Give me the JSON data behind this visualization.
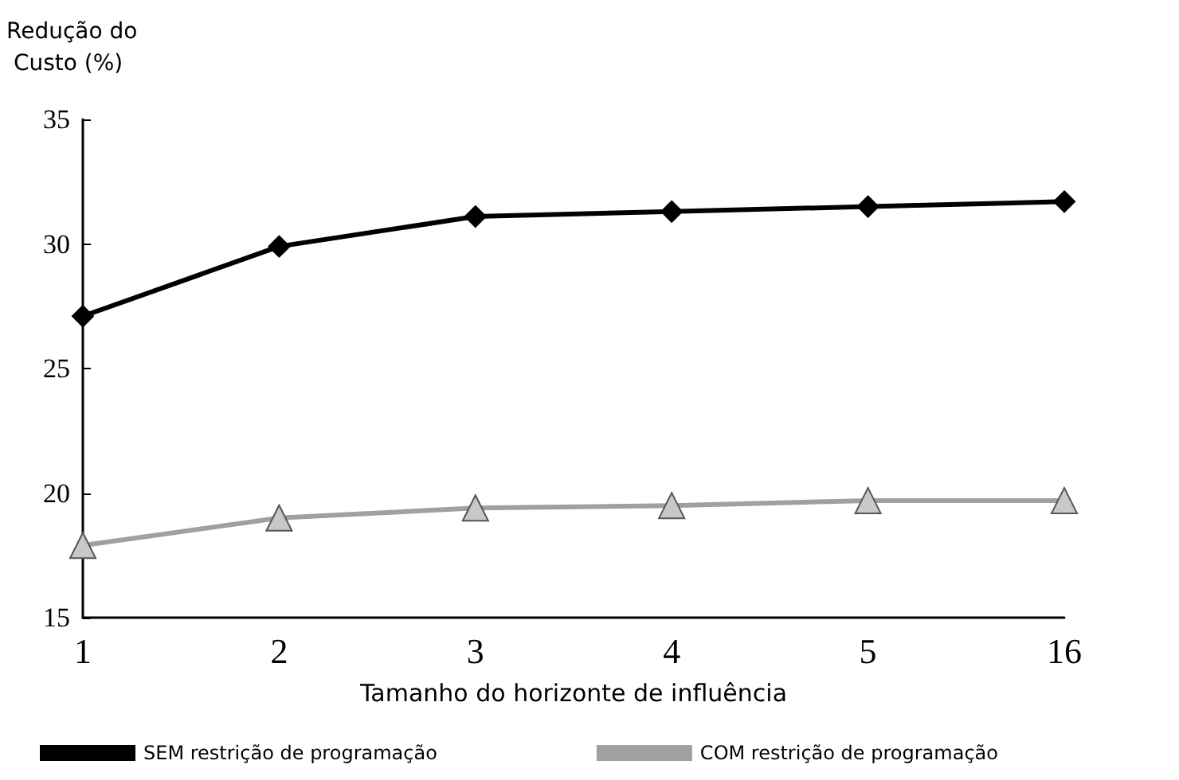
{
  "chart_data": {
    "type": "line",
    "ylabel": "Redução do Custo (%)",
    "xlabel": "Tamanho do horizonte de influência",
    "categories": [
      "1",
      "2",
      "3",
      "4",
      "5",
      "16"
    ],
    "series": [
      {
        "name": "SEM restrição de programação",
        "color": "#000000",
        "marker": "diamond",
        "values": [
          27.1,
          29.9,
          31.1,
          31.3,
          31.5,
          31.7
        ]
      },
      {
        "name": "COM restrição de programação",
        "color": "#a0a0a0",
        "marker": "triangle",
        "values": [
          17.9,
          19.0,
          19.4,
          19.5,
          19.7,
          19.7
        ]
      }
    ],
    "ylim": [
      15,
      35
    ],
    "yticks": [
      15,
      20,
      25,
      30,
      35
    ],
    "grid": false,
    "legend": "bottom",
    "line_style": "solid"
  }
}
